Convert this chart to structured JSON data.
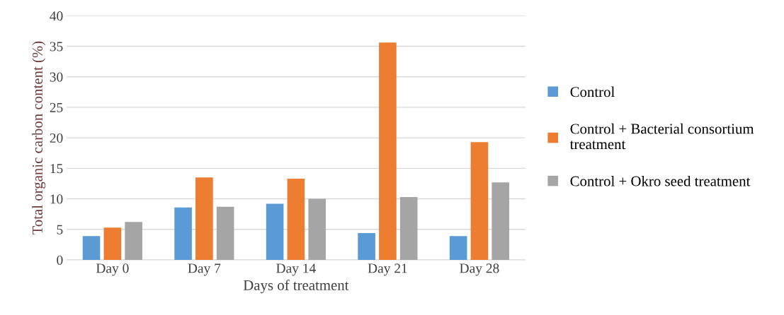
{
  "chart_data": {
    "type": "bar",
    "xlabel": "Days of treatment",
    "ylabel": "Total organic carbon content (%)",
    "categories": [
      "Day 0",
      "Day 7",
      "Day 14",
      "Day 21",
      "Day 28"
    ],
    "series": [
      {
        "name": "Control",
        "color": "#5b9bd5",
        "values": [
          3.9,
          8.6,
          9.2,
          4.4,
          3.9
        ]
      },
      {
        "name": "Control + Bacterial consortium treatment",
        "color": "#ed7d31",
        "values": [
          5.3,
          13.5,
          13.3,
          35.6,
          19.3
        ]
      },
      {
        "name": "Control + Okro seed treatment",
        "color": "#a5a5a5",
        "values": [
          6.2,
          8.7,
          10.0,
          10.3,
          12.7
        ]
      }
    ],
    "ylim": [
      0,
      40
    ],
    "yticks": [
      0,
      5,
      10,
      15,
      20,
      25,
      30,
      35,
      40
    ],
    "grid": "y",
    "legend": "right"
  }
}
